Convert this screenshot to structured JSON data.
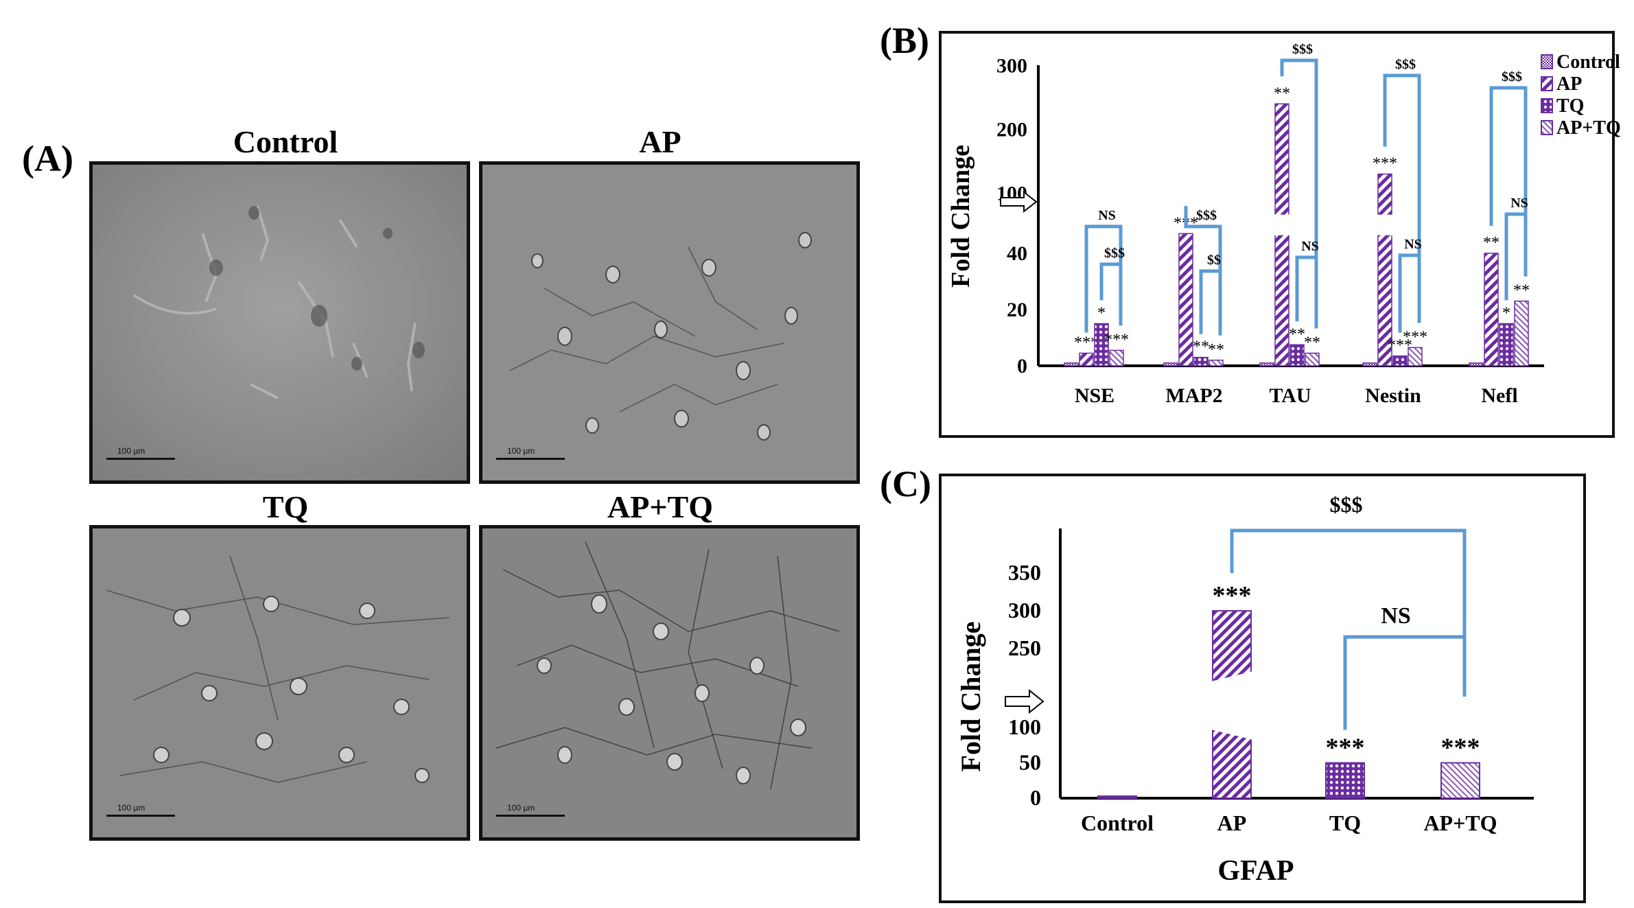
{
  "panel_a": {
    "letter": "(A)",
    "images": [
      {
        "title": "Control",
        "scale": "100 µm"
      },
      {
        "title": "AP",
        "scale": "100 µm"
      },
      {
        "title": "TQ",
        "scale": "100 µm"
      },
      {
        "title": "AP+TQ",
        "scale": "100 µm"
      }
    ]
  },
  "panel_b": {
    "letter": "(B)"
  },
  "panel_c": {
    "letter": "(C)"
  },
  "colors": {
    "bar_fill": "#6a2ca0",
    "bracket": "#5b9bd5",
    "background": "#ffffff"
  },
  "chart_data": [
    {
      "type": "bar",
      "panel": "B",
      "ylabel": "Fold Change",
      "categories": [
        "NSE",
        "MAP2",
        "TAU",
        "Nestin",
        "Nefl"
      ],
      "series": [
        {
          "name": "Control",
          "pattern": "small-check",
          "values": [
            1,
            1,
            1,
            1,
            1
          ]
        },
        {
          "name": "AP",
          "pattern": "diagonal",
          "values": [
            4.5,
            47,
            240,
            130,
            40
          ]
        },
        {
          "name": "TQ",
          "pattern": "dots",
          "values": [
            15,
            3,
            7.5,
            3.5,
            15
          ]
        },
        {
          "name": "AP+TQ",
          "pattern": "fine-diagonal",
          "values": [
            5.5,
            2,
            4.5,
            6.5,
            23
          ]
        }
      ],
      "yticks": [
        "0",
        "20",
        "40",
        "100",
        "200",
        "300"
      ],
      "axis_break": true,
      "significance": [
        [
          "***",
          "*",
          "***"
        ],
        [
          "***",
          "**",
          "**"
        ],
        [
          "**",
          "**",
          "**"
        ],
        [
          "***",
          "***",
          "***"
        ],
        [
          "**",
          "*",
          "**"
        ]
      ],
      "brackets": [
        {
          "group": "NSE",
          "top": "NS",
          "inner": "$$$"
        },
        {
          "group": "MAP2",
          "top": "$$$",
          "inner": "$$"
        },
        {
          "group": "TAU",
          "top": "$$$",
          "inner": "NS"
        },
        {
          "group": "Nestin",
          "top": "$$$",
          "inner": "NS"
        },
        {
          "group": "Nefl",
          "top": "$$$",
          "inner": "NS"
        }
      ]
    },
    {
      "type": "bar",
      "panel": "C",
      "title": "GFAP",
      "ylabel": "Fold Change",
      "categories": [
        "Control",
        "AP",
        "TQ",
        "AP+TQ"
      ],
      "values": [
        1,
        300,
        50,
        50
      ],
      "patterns": [
        "solid",
        "diagonal",
        "dots",
        "fine-diagonal"
      ],
      "yticks": [
        "0",
        "50",
        "100",
        "250",
        "300",
        "350"
      ],
      "axis_break": true,
      "significance": [
        "",
        "***",
        "***",
        "***"
      ],
      "brackets": [
        {
          "from": "AP",
          "to": "AP+TQ",
          "label": "$$$"
        },
        {
          "from": "TQ",
          "to": "AP+TQ",
          "label": "NS"
        }
      ]
    }
  ]
}
